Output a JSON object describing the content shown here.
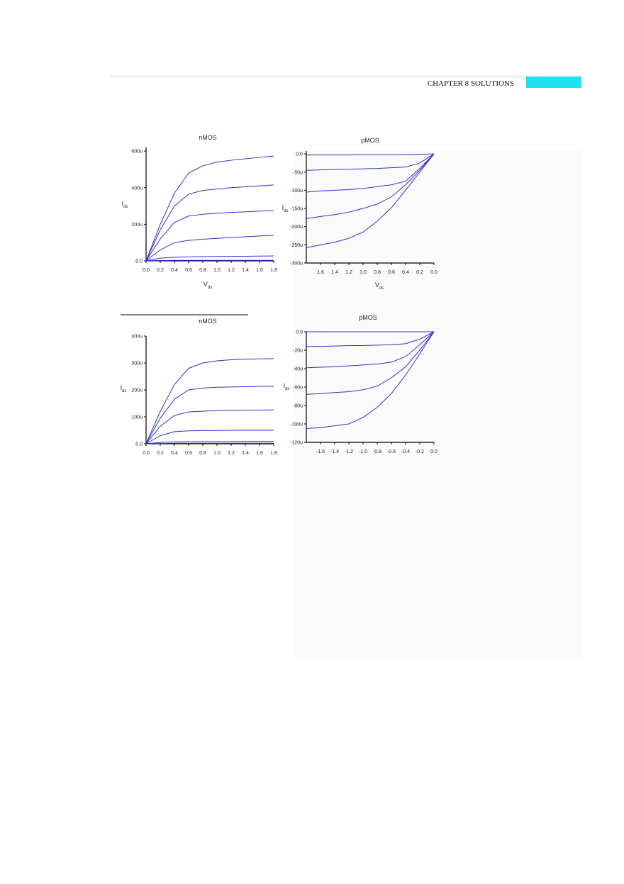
{
  "header": {
    "text": "CHAPTER 8 SOLUTIONS"
  },
  "chart_data": [
    {
      "type": "line",
      "title": "nMOS",
      "xlabel": {
        "text": "V",
        "subscript": "ds"
      },
      "ylabel": {
        "text": "I",
        "subscript": "ds"
      },
      "x": [
        0,
        0.2,
        0.4,
        0.6,
        0.8,
        1.0,
        1.2,
        1.4,
        1.6,
        1.8
      ],
      "series": [
        {
          "color": "#3030c8",
          "values": [
            0,
            200,
            370,
            480,
            520,
            540,
            550,
            558,
            566,
            573
          ]
        },
        {
          "color": "#3030c8",
          "values": [
            0,
            170,
            300,
            365,
            385,
            393,
            400,
            405,
            410,
            415
          ]
        },
        {
          "color": "#3030c8",
          "values": [
            0,
            120,
            210,
            245,
            255,
            260,
            265,
            268,
            272,
            275
          ]
        },
        {
          "color": "#3030c8",
          "values": [
            0,
            60,
            100,
            112,
            118,
            123,
            128,
            132,
            136,
            140
          ]
        },
        {
          "color": "#3030c8",
          "values": [
            0,
            15,
            20,
            22,
            23,
            24,
            25,
            25,
            26,
            27
          ]
        },
        {
          "color": "#3030c8",
          "values": [
            0,
            2,
            3,
            3,
            3,
            3,
            3,
            3,
            3,
            3
          ]
        }
      ],
      "xlim": [
        0,
        1.8
      ],
      "ylim": [
        0,
        620
      ],
      "xticks": [
        {
          "value": 0,
          "label": "0.0"
        },
        0.2,
        0.4,
        0.6,
        0.8,
        {
          "value": 1,
          "label": "1.0"
        },
        1.2,
        1.4,
        1.6,
        1.8
      ],
      "yticks": [
        {
          "value": 0,
          "label": "0.0"
        },
        {
          "value": 200,
          "label": "200u"
        },
        {
          "value": 400,
          "label": "400u"
        },
        {
          "value": 600,
          "label": "600u"
        }
      ]
    },
    {
      "type": "line",
      "title": "pMOS",
      "xlabel": {
        "text": "V",
        "subscript": "ds"
      },
      "ylabel": {
        "text": "I",
        "subscript": "ds"
      },
      "x": [
        1.8,
        1.6,
        1.4,
        1.2,
        1.0,
        0.8,
        0.6,
        0.4,
        0.2,
        0
      ],
      "series": [
        {
          "color": "#3030c8",
          "values": [
            -3,
            -3,
            -3,
            -3,
            -2,
            -2,
            -2,
            -2,
            -1,
            0
          ]
        },
        {
          "color": "#3030c8",
          "values": [
            -45,
            -44,
            -43,
            -42,
            -41,
            -40,
            -38,
            -36,
            -25,
            0
          ]
        },
        {
          "color": "#3030c8",
          "values": [
            -105,
            -102,
            -100,
            -98,
            -95,
            -90,
            -85,
            -75,
            -40,
            0
          ]
        },
        {
          "color": "#3030c8",
          "values": [
            -178,
            -172,
            -167,
            -160,
            -150,
            -138,
            -118,
            -85,
            -45,
            0
          ]
        },
        {
          "color": "#3030c8",
          "values": [
            -258,
            -250,
            -243,
            -232,
            -215,
            -185,
            -148,
            -100,
            -50,
            0
          ]
        }
      ],
      "xlim": [
        1.8,
        0
      ],
      "ylim": [
        -300,
        8
      ],
      "xticks": [
        1.6,
        1.4,
        1.2,
        {
          "value": 1,
          "label": "1.0"
        },
        0.8,
        0.6,
        0.4,
        0.2,
        {
          "value": 0,
          "label": "0.0"
        }
      ],
      "yticks": [
        {
          "value": 0,
          "label": "0.0"
        },
        {
          "value": -50,
          "label": "-50u"
        },
        {
          "value": -100,
          "label": "-100u"
        },
        {
          "value": -150,
          "label": "-150u"
        },
        {
          "value": -200,
          "label": "-200u"
        },
        {
          "value": -250,
          "label": "-250u"
        },
        {
          "value": -300,
          "label": "-300u"
        }
      ]
    },
    {
      "type": "line",
      "title": "nMOS",
      "ylabel": {
        "text": "I",
        "subscript": "ds"
      },
      "x": [
        0,
        0.2,
        0.4,
        0.6,
        0.8,
        1.0,
        1.2,
        1.4,
        1.6,
        1.8
      ],
      "series": [
        {
          "color": "#3030c8",
          "values": [
            0,
            120,
            220,
            280,
            300,
            308,
            312,
            314,
            315,
            316
          ]
        },
        {
          "color": "#3030c8",
          "values": [
            0,
            95,
            165,
            200,
            207,
            210,
            211,
            212,
            213,
            213
          ]
        },
        {
          "color": "#3030c8",
          "values": [
            0,
            65,
            105,
            118,
            121,
            123,
            124,
            125,
            125,
            126
          ]
        },
        {
          "color": "#3030c8",
          "values": [
            0,
            30,
            45,
            48,
            49,
            49,
            50,
            50,
            50,
            50
          ]
        },
        {
          "color": "#3030c8",
          "values": [
            0,
            5,
            7,
            8,
            8,
            8,
            8,
            9,
            9,
            9
          ]
        },
        {
          "color": "#3030c8",
          "values": [
            0,
            1,
            2,
            2,
            2,
            2,
            2,
            2,
            2,
            2
          ]
        }
      ],
      "xlim": [
        0,
        1.8
      ],
      "ylim": [
        0,
        400
      ],
      "xticks": [
        {
          "value": 0,
          "label": "0.0"
        },
        0.2,
        0.4,
        0.6,
        0.8,
        {
          "value": 1,
          "label": "1.0"
        },
        1.2,
        1.4,
        1.6,
        1.8
      ],
      "yticks": [
        {
          "value": 0,
          "label": "0.0"
        },
        {
          "value": 100,
          "label": "100u"
        },
        {
          "value": 200,
          "label": "200u"
        },
        {
          "value": 300,
          "label": "300u"
        },
        {
          "value": 400,
          "label": "400u"
        }
      ]
    },
    {
      "type": "line",
      "title": "pMOS",
      "ylabel": {
        "text": "I",
        "subscript": "ds"
      },
      "x": [
        -1.8,
        -1.6,
        -1.4,
        -1.2,
        -1.0,
        -0.8,
        -0.6,
        -0.4,
        -0.2,
        0
      ],
      "series": [
        {
          "color": "#3030c8",
          "values": [
            0,
            0,
            0,
            0,
            0,
            0,
            0,
            0,
            0,
            0
          ]
        },
        {
          "color": "#3030c8",
          "values": [
            -16,
            -16,
            -15.5,
            -15,
            -15,
            -14.5,
            -14,
            -13,
            -8,
            0
          ]
        },
        {
          "color": "#3030c8",
          "values": [
            -39,
            -38.5,
            -38,
            -37,
            -36,
            -35,
            -33,
            -27,
            -14,
            0
          ]
        },
        {
          "color": "#3030c8",
          "values": [
            -68,
            -67,
            -66,
            -65,
            -63,
            -59,
            -50,
            -38,
            -20,
            0
          ]
        },
        {
          "color": "#3030c8",
          "values": [
            -105,
            -104,
            -102,
            -100,
            -93,
            -82,
            -67,
            -47,
            -24,
            0
          ]
        }
      ],
      "xlim": [
        -1.8,
        0
      ],
      "ylim": [
        -120,
        0
      ],
      "xticks": [
        -1.6,
        -1.4,
        -1.2,
        {
          "value": -1,
          "label": "-1.0"
        },
        -0.8,
        -0.6,
        -0.4,
        -0.2,
        {
          "value": 0,
          "label": "0.0"
        }
      ],
      "yticks": [
        {
          "value": 0,
          "label": "0.0"
        },
        {
          "value": -20,
          "label": "-20u"
        },
        {
          "value": -40,
          "label": "-40u"
        },
        {
          "value": -60,
          "label": "-60u"
        },
        {
          "value": -80,
          "label": "-80u"
        },
        {
          "value": -100,
          "label": "-100u"
        },
        {
          "value": -120,
          "label": "-120u"
        }
      ]
    }
  ]
}
